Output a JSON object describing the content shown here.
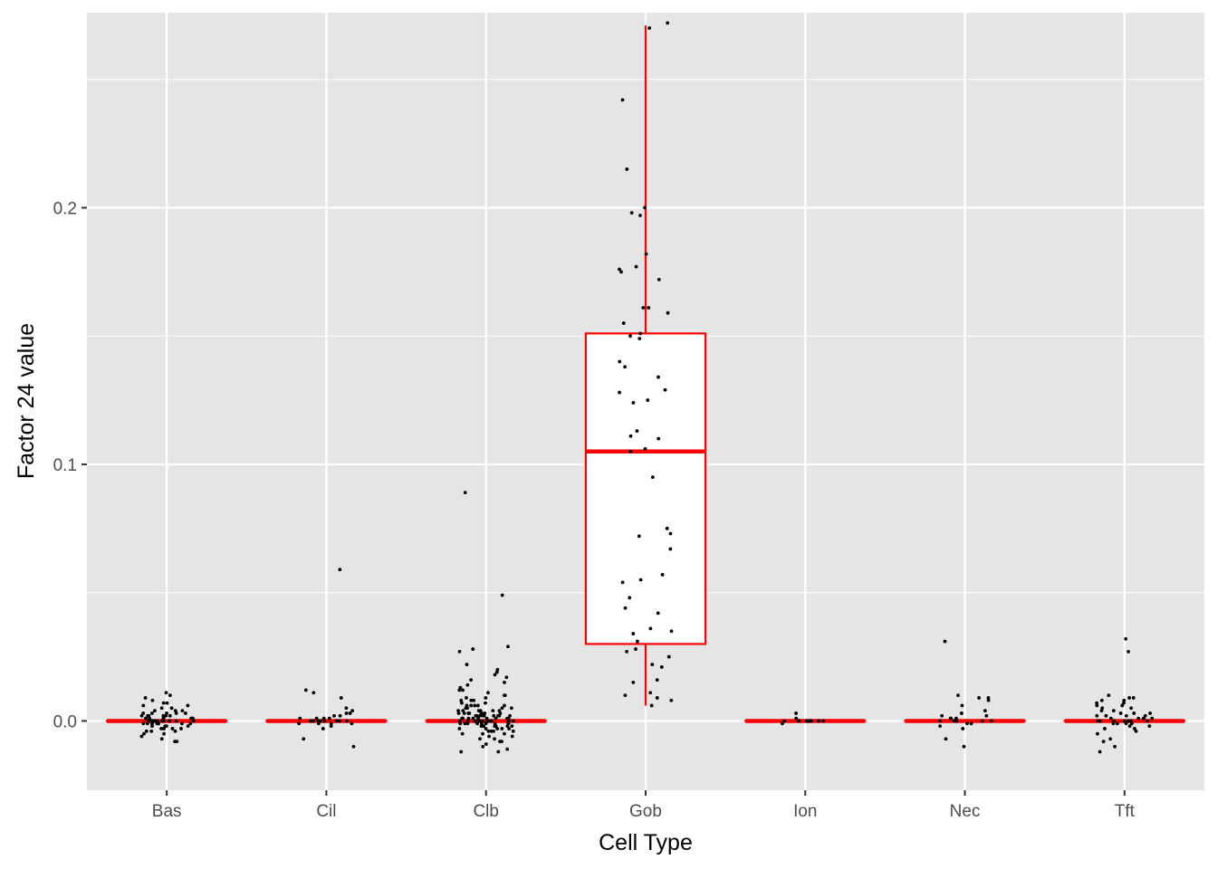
{
  "chart_data": {
    "type": "box",
    "xlabel": "Cell Type",
    "ylabel": "Factor 24 value",
    "ylim": [
      -0.027,
      0.276
    ],
    "y_ticks": [
      0.0,
      0.1,
      0.2
    ],
    "y_tick_labels": [
      "0.0",
      "0.1",
      "0.2"
    ],
    "y_minor_ticks": [
      -0.05,
      0.05,
      0.15,
      0.25
    ],
    "grid": true,
    "legend": "none",
    "colors": {
      "panel": "#e5e5e5",
      "grid": "#ffffff",
      "box": "#ff0000",
      "points": "#000000",
      "tick_text": "#4d4d4d"
    },
    "categories": [
      "Bas",
      "Cil",
      "Clb",
      "Gob",
      "Ion",
      "Nec",
      "Tft"
    ],
    "boxes": [
      {
        "category": "Bas",
        "whisker_low": 0.0,
        "q1": 0.0,
        "median": 0.0,
        "q3": 0.0,
        "whisker_high": 0.0
      },
      {
        "category": "Cil",
        "whisker_low": 0.0,
        "q1": 0.0,
        "median": 0.0,
        "q3": 0.0,
        "whisker_high": 0.0
      },
      {
        "category": "Clb",
        "whisker_low": 0.0,
        "q1": 0.0,
        "median": 0.0,
        "q3": 0.0,
        "whisker_high": 0.0
      },
      {
        "category": "Gob",
        "whisker_low": 0.006,
        "q1": 0.03,
        "median": 0.105,
        "q3": 0.151,
        "whisker_high": 0.271
      },
      {
        "category": "Ion",
        "whisker_low": 0.0,
        "q1": 0.0,
        "median": 0.0,
        "q3": 0.0,
        "whisker_high": 0.0
      },
      {
        "category": "Nec",
        "whisker_low": 0.0,
        "q1": 0.0,
        "median": 0.0,
        "q3": 0.0,
        "whisker_high": 0.0
      },
      {
        "category": "Tft",
        "whisker_low": 0.0,
        "q1": 0.0,
        "median": 0.0,
        "q3": 0.0,
        "whisker_high": 0.0
      }
    ],
    "points": [
      {
        "category": "Bas",
        "y": [
          0.011,
          0.01,
          0.009,
          0.008,
          0.007,
          0.007,
          0.006,
          0.006,
          0.005,
          0.005,
          0.004,
          0.004,
          0.004,
          0.003,
          0.003,
          0.003,
          0.003,
          0.002,
          0.002,
          0.002,
          0.002,
          0.002,
          0.001,
          0.001,
          0.001,
          0.001,
          0.001,
          0.001,
          0.0,
          0.0,
          0.0,
          0.0,
          0.0,
          0.0,
          0.0,
          0.0,
          0.0,
          0.0,
          -0.001,
          -0.001,
          -0.001,
          -0.001,
          -0.001,
          -0.001,
          -0.002,
          -0.002,
          -0.002,
          -0.002,
          -0.003,
          -0.003,
          -0.003,
          -0.004,
          -0.004,
          -0.004,
          -0.005,
          -0.005,
          -0.006,
          -0.007,
          -0.008,
          -0.008,
          0.001,
          -0.001,
          0.002,
          -0.002,
          0.0,
          0.003,
          -0.003,
          0.001,
          0.0,
          -0.001
        ]
      },
      {
        "category": "Cil",
        "y": [
          0.059,
          0.012,
          0.011,
          0.009,
          0.005,
          0.004,
          0.003,
          0.003,
          0.002,
          0.002,
          0.001,
          0.001,
          0.001,
          0.0,
          0.0,
          0.0,
          0.0,
          0.0,
          0.0,
          -0.001,
          -0.001,
          -0.001,
          -0.002,
          -0.003,
          -0.007,
          -0.01,
          0.001,
          0.0,
          -0.001,
          0.0
        ]
      },
      {
        "category": "Clb",
        "y": [
          0.089,
          0.049,
          0.029,
          0.028,
          0.027,
          0.022,
          0.02,
          0.019,
          0.018,
          0.017,
          0.016,
          0.015,
          0.014,
          0.013,
          0.012,
          0.012,
          0.011,
          0.01,
          0.01,
          0.009,
          0.009,
          0.008,
          0.008,
          0.007,
          0.007,
          0.006,
          0.006,
          0.006,
          0.005,
          0.005,
          0.005,
          0.004,
          0.004,
          0.004,
          0.004,
          0.003,
          0.003,
          0.003,
          0.003,
          0.003,
          0.002,
          0.002,
          0.002,
          0.002,
          0.002,
          0.002,
          0.001,
          0.001,
          0.001,
          0.001,
          0.001,
          0.001,
          0.001,
          0.0,
          0.0,
          0.0,
          0.0,
          0.0,
          0.0,
          0.0,
          0.0,
          -0.001,
          -0.001,
          -0.001,
          -0.001,
          -0.001,
          -0.001,
          -0.002,
          -0.002,
          -0.002,
          -0.002,
          -0.002,
          -0.003,
          -0.003,
          -0.003,
          -0.003,
          -0.004,
          -0.004,
          -0.004,
          -0.005,
          -0.005,
          -0.005,
          -0.006,
          -0.006,
          -0.007,
          -0.007,
          -0.008,
          -0.008,
          -0.009,
          -0.01,
          -0.011,
          -0.012,
          -0.012,
          0.004,
          0.002,
          0.0,
          -0.002,
          0.006,
          0.001,
          -0.001,
          0.003,
          0.0,
          0.002,
          -0.003,
          0.005,
          0.001,
          -0.001,
          0.0,
          0.003,
          -0.002,
          0.008,
          0.004,
          0.0,
          0.001,
          -0.004,
          0.002,
          0.006,
          0.0,
          -0.001,
          0.003
        ]
      },
      {
        "category": "Gob",
        "y": [
          0.272,
          0.27,
          0.242,
          0.215,
          0.2,
          0.198,
          0.197,
          0.182,
          0.177,
          0.176,
          0.175,
          0.172,
          0.161,
          0.161,
          0.159,
          0.155,
          0.151,
          0.15,
          0.149,
          0.14,
          0.138,
          0.134,
          0.129,
          0.128,
          0.125,
          0.124,
          0.113,
          0.111,
          0.11,
          0.106,
          0.105,
          0.095,
          0.075,
          0.073,
          0.072,
          0.067,
          0.057,
          0.055,
          0.054,
          0.048,
          0.044,
          0.042,
          0.036,
          0.035,
          0.034,
          0.031,
          0.028,
          0.027,
          0.025,
          0.022,
          0.021,
          0.016,
          0.015,
          0.011,
          0.01,
          0.009,
          0.008,
          0.006
        ]
      },
      {
        "category": "Ion",
        "y": [
          0.003,
          0.001,
          0.0,
          0.0,
          0.0,
          0.0,
          0.0,
          0.0,
          0.0,
          0.0,
          0.0,
          0.0,
          -0.001
        ]
      },
      {
        "category": "Nec",
        "y": [
          0.031,
          0.01,
          0.009,
          0.009,
          0.008,
          0.006,
          0.004,
          0.003,
          0.002,
          0.002,
          0.001,
          0.001,
          0.001,
          0.0,
          0.0,
          0.0,
          0.0,
          0.0,
          -0.001,
          -0.001,
          -0.002,
          -0.003,
          -0.007,
          -0.01,
          0.0,
          0.001
        ]
      },
      {
        "category": "Tft",
        "y": [
          0.032,
          0.027,
          0.01,
          0.009,
          0.009,
          0.008,
          0.008,
          0.007,
          0.007,
          0.006,
          0.006,
          0.005,
          0.005,
          0.004,
          0.004,
          0.003,
          0.003,
          0.003,
          0.002,
          0.002,
          0.002,
          0.001,
          0.001,
          0.001,
          0.001,
          0.0,
          0.0,
          0.0,
          0.0,
          0.0,
          0.0,
          -0.001,
          -0.001,
          -0.001,
          -0.002,
          -0.002,
          -0.003,
          -0.003,
          -0.004,
          -0.005,
          -0.007,
          -0.008,
          -0.01,
          -0.012,
          0.001,
          0.0,
          0.002,
          -0.001
        ]
      }
    ]
  }
}
